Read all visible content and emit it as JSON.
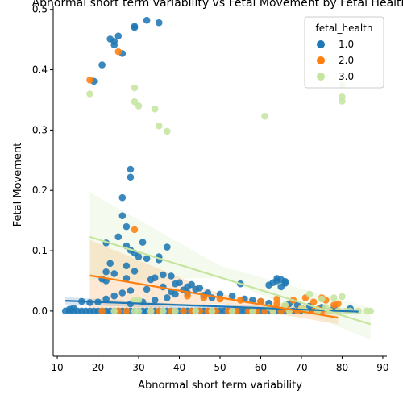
{
  "chart_data": {
    "type": "scatter",
    "title": "Abnormal short term variability vs Fetal Movement by Fetal Health",
    "xlabel": "Abnormal short term variability",
    "ylabel": "Fetal Movement",
    "xlim": [
      9,
      91
    ],
    "ylim": [
      -0.075,
      0.505
    ],
    "xticks": [
      "10",
      "20",
      "30",
      "40",
      "50",
      "60",
      "70",
      "80",
      "90"
    ],
    "yticks": [
      "0.0",
      "0.1",
      "0.2",
      "0.3",
      "0.4",
      "0.5"
    ],
    "grid": false,
    "legend": {
      "title": "fetal_health",
      "placement": "top-right"
    },
    "series": [
      {
        "name": "1.0",
        "color": "#1f77b4",
        "points": [
          [
            32,
            0.482
          ],
          [
            35,
            0.478
          ],
          [
            29,
            0.472
          ],
          [
            29,
            0.47
          ],
          [
            23,
            0.451
          ],
          [
            25,
            0.456
          ],
          [
            24,
            0.447
          ],
          [
            24,
            0.441
          ],
          [
            26,
            0.427
          ],
          [
            21,
            0.408
          ],
          [
            19,
            0.381
          ],
          [
            28,
            0.235
          ],
          [
            28,
            0.222
          ],
          [
            26,
            0.188
          ],
          [
            26,
            0.158
          ],
          [
            27,
            0.14
          ],
          [
            25,
            0.123
          ],
          [
            31,
            0.114
          ],
          [
            22,
            0.113
          ],
          [
            27,
            0.108
          ],
          [
            28,
            0.101
          ],
          [
            29,
            0.096
          ],
          [
            30,
            0.09
          ],
          [
            32,
            0.087
          ],
          [
            35,
            0.09
          ],
          [
            35,
            0.085
          ],
          [
            37,
            0.106
          ],
          [
            23,
            0.079
          ],
          [
            27,
            0.075
          ],
          [
            29,
            0.066
          ],
          [
            22,
            0.065
          ],
          [
            24,
            0.062
          ],
          [
            36,
            0.06
          ],
          [
            38,
            0.058
          ],
          [
            34,
            0.055
          ],
          [
            27,
            0.054
          ],
          [
            21,
            0.053
          ],
          [
            33,
            0.052
          ],
          [
            22,
            0.05
          ],
          [
            40,
            0.047
          ],
          [
            43,
            0.044
          ],
          [
            55,
            0.045
          ],
          [
            63,
            0.047
          ],
          [
            64,
            0.05
          ],
          [
            65,
            0.052
          ],
          [
            64,
            0.054
          ],
          [
            66,
            0.049
          ],
          [
            66,
            0.046
          ],
          [
            62,
            0.043
          ],
          [
            65,
            0.04
          ],
          [
            42,
            0.04
          ],
          [
            45,
            0.038
          ],
          [
            41,
            0.035
          ],
          [
            38,
            0.032
          ],
          [
            47,
            0.03
          ],
          [
            50,
            0.028
          ],
          [
            53,
            0.025
          ],
          [
            44,
            0.036
          ],
          [
            39,
            0.045
          ],
          [
            36,
            0.04
          ],
          [
            32,
            0.036
          ],
          [
            28,
            0.034
          ],
          [
            26,
            0.03
          ],
          [
            24,
            0.025
          ],
          [
            22,
            0.02
          ],
          [
            20,
            0.015
          ],
          [
            18,
            0.014
          ],
          [
            16,
            0.016
          ],
          [
            14,
            0.005
          ],
          [
            13,
            0.003
          ],
          [
            56,
            0.02
          ],
          [
            58,
            0.018
          ],
          [
            60,
            0.016
          ],
          [
            62,
            0.013
          ],
          [
            67,
            0.012
          ],
          [
            69,
            0.01
          ],
          [
            72,
            0.008
          ],
          [
            75,
            0.006
          ],
          [
            78,
            0.005
          ],
          [
            82,
            0.004
          ],
          [
            48,
            0.022
          ],
          [
            46,
            0.026
          ],
          [
            42,
            0.03
          ],
          [
            39,
            0.028
          ],
          [
            37,
            0.022
          ],
          [
            34,
            0.018
          ],
          [
            31,
            0.015
          ],
          [
            28,
            0.012
          ],
          [
            12,
            0.0
          ],
          [
            13,
            0.0
          ],
          [
            14,
            0.0
          ],
          [
            15,
            0.0
          ],
          [
            16,
            0.0
          ],
          [
            17,
            0.0
          ],
          [
            18,
            0.0
          ],
          [
            19,
            0.0
          ],
          [
            20,
            0.0
          ],
          [
            21,
            0.0
          ],
          [
            22,
            0.0
          ],
          [
            23,
            0.0
          ],
          [
            24,
            0.0
          ],
          [
            25,
            0.0
          ],
          [
            26,
            0.0
          ],
          [
            27,
            0.0
          ],
          [
            28,
            0.0
          ],
          [
            29,
            0.0
          ],
          [
            30,
            0.0
          ],
          [
            31,
            0.0
          ],
          [
            32,
            0.0
          ],
          [
            33,
            0.0
          ],
          [
            34,
            0.0
          ],
          [
            35,
            0.0
          ],
          [
            36,
            0.0
          ],
          [
            37,
            0.0
          ],
          [
            38,
            0.0
          ],
          [
            39,
            0.0
          ],
          [
            40,
            0.0
          ],
          [
            41,
            0.0
          ],
          [
            42,
            0.0
          ],
          [
            43,
            0.0
          ],
          [
            44,
            0.0
          ],
          [
            45,
            0.0
          ],
          [
            46,
            0.0
          ],
          [
            47,
            0.0
          ],
          [
            48,
            0.0
          ],
          [
            49,
            0.0
          ],
          [
            50,
            0.0
          ],
          [
            51,
            0.0
          ],
          [
            52,
            0.0
          ],
          [
            53,
            0.0
          ],
          [
            54,
            0.0
          ],
          [
            55,
            0.0
          ],
          [
            56,
            0.0
          ],
          [
            57,
            0.0
          ],
          [
            58,
            0.0
          ],
          [
            59,
            0.0
          ],
          [
            60,
            0.0
          ],
          [
            61,
            0.0
          ],
          [
            62,
            0.0
          ],
          [
            63,
            0.0
          ],
          [
            64,
            0.0
          ],
          [
            65,
            0.0
          ],
          [
            66,
            0.0
          ],
          [
            67,
            0.0
          ],
          [
            68,
            0.0
          ],
          [
            70,
            0.0
          ],
          [
            72,
            0.0
          ],
          [
            74,
            0.0
          ]
        ],
        "regression": [
          [
            12,
            0.017
          ],
          [
            84,
            -0.001
          ]
        ],
        "ci": [
          [
            12,
            0.023,
            0.011
          ],
          [
            40,
            0.012,
            0.004
          ],
          [
            84,
            0.004,
            -0.006
          ]
        ]
      },
      {
        "name": "2.0",
        "color": "#ff7f0e",
        "points": [
          [
            25,
            0.43
          ],
          [
            18,
            0.383
          ],
          [
            29,
            0.135
          ],
          [
            42,
            0.025
          ],
          [
            46,
            0.022
          ],
          [
            50,
            0.02
          ],
          [
            55,
            0.018
          ],
          [
            60,
            0.016
          ],
          [
            64,
            0.02
          ],
          [
            68,
            0.018
          ],
          [
            71,
            0.022
          ],
          [
            73,
            0.015
          ],
          [
            75,
            0.022
          ],
          [
            76,
            0.018
          ],
          [
            78,
            0.01
          ],
          [
            79,
            0.012
          ],
          [
            64,
            0.012
          ],
          [
            66,
            0.008
          ],
          [
            70,
            0.005
          ],
          [
            74,
            0.003
          ],
          [
            21,
            0.0
          ],
          [
            25,
            0.0
          ],
          [
            27,
            0.0
          ],
          [
            33,
            0.0
          ],
          [
            35,
            0.0
          ],
          [
            38,
            0.0
          ],
          [
            41,
            0.0
          ],
          [
            43,
            0.0
          ],
          [
            45,
            0.0
          ],
          [
            47,
            0.0
          ],
          [
            49,
            0.0
          ],
          [
            52,
            0.0
          ],
          [
            54,
            0.0
          ],
          [
            57,
            0.0
          ],
          [
            59,
            0.0
          ],
          [
            61,
            0.0
          ],
          [
            63,
            0.0
          ],
          [
            65,
            0.0
          ],
          [
            67,
            0.0
          ],
          [
            69,
            0.0
          ],
          [
            71,
            0.0
          ],
          [
            73,
            0.0
          ],
          [
            75,
            0.0
          ],
          [
            77,
            0.0
          ],
          [
            79,
            0.0
          ]
        ],
        "regression": [
          [
            18,
            0.059
          ],
          [
            79,
            -0.011
          ]
        ],
        "ci": [
          [
            18,
            0.118,
            0.0
          ],
          [
            50,
            0.028,
            0.012
          ],
          [
            79,
            0.0,
            -0.022
          ]
        ]
      },
      {
        "name": "3.0",
        "color": "#c6e5a0",
        "points": [
          [
            29,
            0.37
          ],
          [
            18,
            0.36
          ],
          [
            29,
            0.347
          ],
          [
            30,
            0.34
          ],
          [
            34,
            0.335
          ],
          [
            35,
            0.307
          ],
          [
            37,
            0.298
          ],
          [
            61,
            0.323
          ],
          [
            80,
            0.375
          ],
          [
            80,
            0.355
          ],
          [
            80,
            0.348
          ],
          [
            72,
            0.028
          ],
          [
            75,
            0.02
          ],
          [
            78,
            0.022
          ],
          [
            80,
            0.024
          ],
          [
            66,
            0.01
          ],
          [
            62,
            0.006
          ],
          [
            70,
            0.004
          ],
          [
            76,
            0.006
          ],
          [
            24,
            0.0
          ],
          [
            29,
            0.0
          ],
          [
            30,
            0.0
          ],
          [
            33,
            0.0
          ],
          [
            36,
            0.0
          ],
          [
            39,
            0.0
          ],
          [
            44,
            0.0
          ],
          [
            48,
            0.0
          ],
          [
            53,
            0.0
          ],
          [
            58,
            0.0
          ],
          [
            63,
            0.0
          ],
          [
            67,
            0.0
          ],
          [
            71,
            0.0
          ],
          [
            74,
            0.0
          ],
          [
            77,
            0.0
          ],
          [
            79,
            0.0
          ],
          [
            81,
            0.0
          ],
          [
            82,
            0.0
          ],
          [
            84,
            0.0
          ],
          [
            86,
            0.0
          ],
          [
            87,
            0.0
          ],
          [
            30,
            0.018
          ],
          [
            29,
            0.018
          ]
        ],
        "regression": [
          [
            18,
            0.123
          ],
          [
            87,
            -0.022
          ]
        ],
        "ci": [
          [
            18,
            0.197,
            0.05
          ],
          [
            50,
            0.075,
            0.055
          ],
          [
            87,
            0.005,
            -0.048
          ]
        ]
      }
    ]
  }
}
